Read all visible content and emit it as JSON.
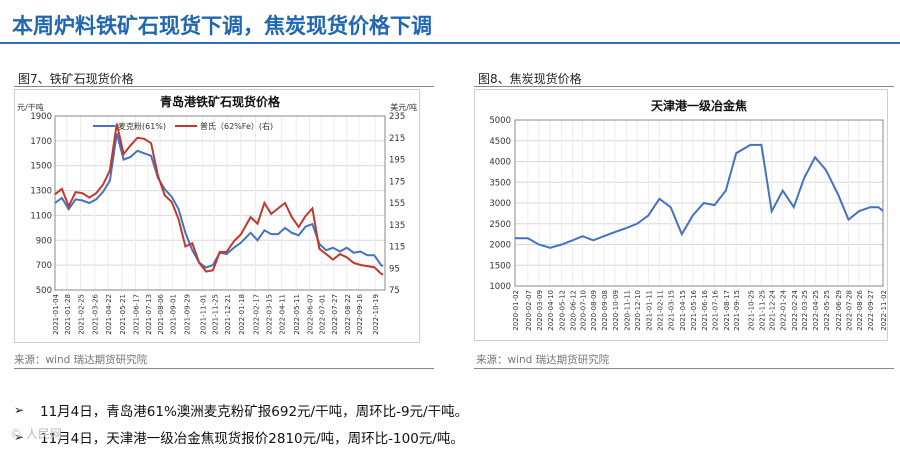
{
  "header": {
    "title": "本周炉料铁矿石现货下调，焦炭现货价格下调"
  },
  "figures": [
    {
      "caption": "图7、铁矿石现货价格",
      "source": "来源：wind   瑞达期货研究院"
    },
    {
      "caption": "图8、焦炭现货价格",
      "source": "来源：wind   瑞达期货研究院"
    }
  ],
  "bullets": [
    "11月4日，青岛港61%澳洲麦克粉矿报692元/干吨，周环比-9元/干吨。",
    "11月4日，天津港一级冶金焦现货报价2810元/吨，周环比-100元/吨。"
  ],
  "watermark": "© 人民网",
  "chart_data": [
    {
      "type": "line",
      "title": "青岛港铁矿石现货价格",
      "ylabel_left": "元/干吨",
      "ylabel_right": "美元/吨",
      "ylim_left": [
        500,
        1900
      ],
      "yticks_left": [
        "500",
        "700",
        "900",
        "1100",
        "1300",
        "1500",
        "1700",
        "1900"
      ],
      "ylim_right": [
        75,
        235
      ],
      "yticks_right": [
        "75",
        "95",
        "115",
        "135",
        "155",
        "175",
        "195",
        "215",
        "235"
      ],
      "x_ticks": [
        "2021-01-04",
        "2021-01-28",
        "2021-02-25",
        "2021-03-26",
        "2021-04-22",
        "2021-05-21",
        "2021-06-17",
        "2021-07-13",
        "2021-08-06",
        "2021-09-01",
        "2021-09-29",
        "2021-11-01",
        "2021-11-25",
        "2021-12-21",
        "2022-01-18",
        "2022-02-17",
        "2022-03-15",
        "2022-04-11",
        "2022-05-11",
        "2022-06-07",
        "2022-07-01",
        "2022-07-27",
        "2022-08-22",
        "2022-09-16",
        "2022-10-19"
      ],
      "grid": true,
      "legend": "top-left",
      "colors": {
        "s1": "#4472c4",
        "s2": "#c0392b"
      },
      "series": [
        {
          "name": "麦克粉(61%)",
          "axis": "left",
          "x": [
            "2021-01-04",
            "2021-01-18",
            "2021-02-01",
            "2021-02-15",
            "2021-03-01",
            "2021-03-15",
            "2021-03-29",
            "2021-04-12",
            "2021-04-26",
            "2021-05-10",
            "2021-05-24",
            "2021-06-07",
            "2021-06-21",
            "2021-07-05",
            "2021-07-19",
            "2021-08-02",
            "2021-08-16",
            "2021-08-30",
            "2021-09-13",
            "2021-09-27",
            "2021-10-11",
            "2021-10-25",
            "2021-11-08",
            "2021-11-22",
            "2021-12-06",
            "2021-12-20",
            "2022-01-04",
            "2022-01-18",
            "2022-02-07",
            "2022-02-21",
            "2022-03-07",
            "2022-03-21",
            "2022-04-04",
            "2022-04-18",
            "2022-05-02",
            "2022-05-16",
            "2022-05-30",
            "2022-06-13",
            "2022-06-27",
            "2022-07-11",
            "2022-07-25",
            "2022-08-08",
            "2022-08-22",
            "2022-09-05",
            "2022-09-19",
            "2022-10-03",
            "2022-10-17",
            "2022-10-31",
            "2022-11-04"
          ],
          "values": [
            1200,
            1240,
            1150,
            1230,
            1220,
            1200,
            1230,
            1290,
            1380,
            1760,
            1550,
            1570,
            1620,
            1600,
            1580,
            1400,
            1310,
            1250,
            1150,
            960,
            820,
            720,
            680,
            700,
            800,
            790,
            840,
            880,
            960,
            900,
            980,
            950,
            950,
            1000,
            960,
            940,
            1010,
            1030,
            870,
            820,
            840,
            810,
            840,
            800,
            810,
            780,
            780,
            700,
            692
          ]
        },
        {
          "name": "普氏（62%Fe）(右)",
          "axis": "right",
          "x": [
            "2021-01-04",
            "2021-01-18",
            "2021-02-01",
            "2021-02-15",
            "2021-03-01",
            "2021-03-15",
            "2021-03-29",
            "2021-04-12",
            "2021-04-26",
            "2021-05-10",
            "2021-05-24",
            "2021-06-07",
            "2021-06-21",
            "2021-07-05",
            "2021-07-19",
            "2021-08-02",
            "2021-08-16",
            "2021-08-30",
            "2021-09-13",
            "2021-09-27",
            "2021-10-11",
            "2021-10-25",
            "2021-11-08",
            "2021-11-22",
            "2021-12-06",
            "2021-12-20",
            "2022-01-04",
            "2022-01-18",
            "2022-02-07",
            "2022-02-21",
            "2022-03-07",
            "2022-03-21",
            "2022-04-04",
            "2022-04-18",
            "2022-05-02",
            "2022-05-16",
            "2022-05-30",
            "2022-06-13",
            "2022-06-27",
            "2022-07-11",
            "2022-07-25",
            "2022-08-08",
            "2022-08-22",
            "2022-09-05",
            "2022-09-19",
            "2022-10-03",
            "2022-10-17",
            "2022-10-31",
            "2022-11-04"
          ],
          "values": [
            163,
            168,
            152,
            165,
            164,
            160,
            164,
            172,
            185,
            228,
            200,
            208,
            215,
            214,
            210,
            180,
            162,
            156,
            140,
            115,
            118,
            100,
            92,
            93,
            110,
            110,
            120,
            126,
            142,
            136,
            155,
            145,
            150,
            155,
            142,
            133,
            143,
            150,
            113,
            108,
            103,
            108,
            105,
            100,
            98,
            97,
            96,
            90,
            89
          ]
        }
      ]
    },
    {
      "type": "line",
      "title": "天津港一级冶金焦",
      "ylim": [
        1000,
        5000
      ],
      "yticks": [
        "1000",
        "1500",
        "2000",
        "2500",
        "3000",
        "3500",
        "4000",
        "4500",
        "5000"
      ],
      "x_ticks": [
        "2020-01-02",
        "2020-02-07",
        "2020-03-09",
        "2020-04-10",
        "2020-05-12",
        "2020-06-12",
        "2020-07-10",
        "2020-08-09",
        "2020-09-08",
        "2020-10-09",
        "2020-11-11",
        "2020-12-10",
        "2021-01-11",
        "2021-02-11",
        "2021-03-15",
        "2021-04-15",
        "2021-05-16",
        "2021-06-16",
        "2021-07-16",
        "2021-08-17",
        "2021-09-15",
        "2021-10-25",
        "2021-11-25",
        "2021-12-24",
        "2022-01-24",
        "2022-02-24",
        "2022-03-25",
        "2022-04-25",
        "2022-05-25",
        "2022-06-29",
        "2022-07-28",
        "2022-08-26",
        "2022-09-27",
        "2022-11-02"
      ],
      "grid": true,
      "colors": {
        "s1": "#4472c4"
      },
      "series": [
        {
          "name": "",
          "x": [
            "2020-01-02",
            "2020-02-07",
            "2020-03-09",
            "2020-04-10",
            "2020-05-12",
            "2020-06-12",
            "2020-07-10",
            "2020-08-09",
            "2020-09-08",
            "2020-10-09",
            "2020-11-11",
            "2020-12-10",
            "2021-01-11",
            "2021-02-11",
            "2021-03-15",
            "2021-04-15",
            "2021-05-16",
            "2021-06-16",
            "2021-07-16",
            "2021-08-17",
            "2021-09-15",
            "2021-10-25",
            "2021-11-25",
            "2021-12-24",
            "2022-01-24",
            "2022-02-24",
            "2022-03-25",
            "2022-04-25",
            "2022-05-25",
            "2022-06-29",
            "2022-07-28",
            "2022-08-26",
            "2022-09-27",
            "2022-10-20",
            "2022-11-02"
          ],
          "values": [
            2150,
            2150,
            2000,
            1920,
            2000,
            2100,
            2200,
            2100,
            2200,
            2300,
            2400,
            2500,
            2700,
            3100,
            2900,
            2250,
            2700,
            3000,
            2950,
            3300,
            4200,
            4400,
            4400,
            2800,
            3300,
            2900,
            3600,
            4100,
            3800,
            3200,
            2600,
            2800,
            2900,
            2900,
            2810
          ]
        }
      ]
    }
  ]
}
